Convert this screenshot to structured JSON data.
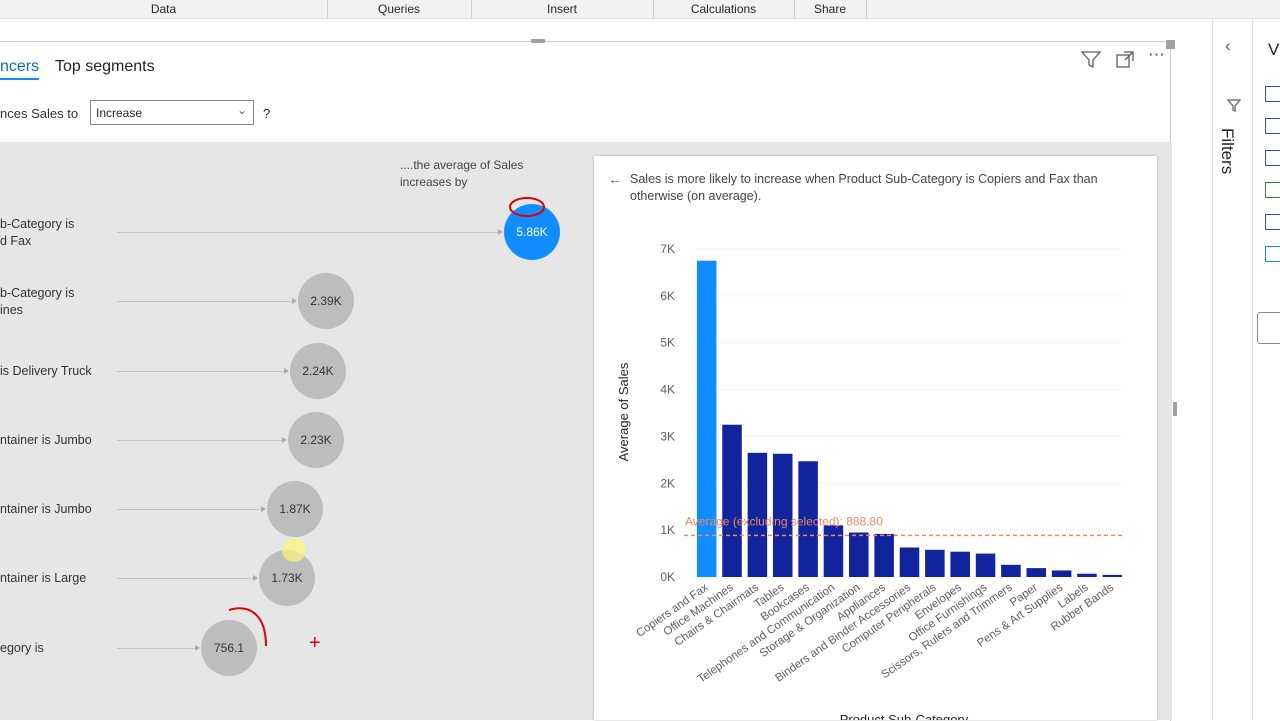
{
  "ribbon": {
    "groups": [
      "Data",
      "Queries",
      "Insert",
      "Calculations",
      "Share"
    ]
  },
  "tabs": {
    "influencers": "ncers",
    "top_segments": "Top segments"
  },
  "question": {
    "lead": "nces Sales to",
    "dropdown_value": "Increase",
    "qmark": "?"
  },
  "avg_caption": "....the average of Sales increases by",
  "influencers": [
    {
      "label": "b-Category is\nd Fax",
      "value": "5.86K",
      "selected": true
    },
    {
      "label": "b-Category is\nines",
      "value": "2.39K",
      "selected": false
    },
    {
      "label": "is Delivery Truck",
      "value": "2.24K",
      "selected": false
    },
    {
      "label": "ntainer is Jumbo",
      "value": "2.23K",
      "selected": false
    },
    {
      "label": "ntainer is Jumbo",
      "value": "1.87K",
      "selected": false
    },
    {
      "label": "ntainer is Large",
      "value": "1.73K",
      "selected": false
    },
    {
      "label": "egory is",
      "value": "756.1",
      "selected": false
    }
  ],
  "detail": {
    "back_icon": "arrow-left-icon",
    "text": "Sales is more likely to increase when Product Sub-Category is Copiers and Fax than otherwise (on average)."
  },
  "chart_data": {
    "type": "bar",
    "title": "",
    "xlabel": "Product Sub-Category",
    "ylabel": "Average of Sales",
    "ylim": [
      0,
      7000
    ],
    "yticks": [
      "0K",
      "1K",
      "2K",
      "3K",
      "4K",
      "5K",
      "6K",
      "7K"
    ],
    "categories": [
      "Copiers and Fax",
      "Office Machines",
      "Chairs & Chairmats",
      "Tables",
      "Bookcases",
      "Telephones and Communication",
      "Storage & Organization",
      "Appliances",
      "Binders and Binder Accessories",
      "Computer Peripherals",
      "Envelopes",
      "Office Furnishings",
      "Scissors, Rulers and Trimmers",
      "Paper",
      "Pens & Art Supplies",
      "Labels",
      "Rubber Bands"
    ],
    "values": [
      6750,
      3250,
      2650,
      2630,
      2470,
      1100,
      950,
      920,
      630,
      580,
      540,
      500,
      260,
      190,
      140,
      70,
      45
    ],
    "selected_index": 0,
    "reference_line": {
      "label": "Average (excluding selected): 888.80",
      "value": 888.8
    },
    "colors": {
      "selected": "#118dff",
      "bars": "#12239e",
      "reference": "#f2885f",
      "grid": "#dcdcdc"
    },
    "grid": true
  },
  "right_panel": {
    "filters_label": "Filters",
    "viz_label": "V"
  },
  "icons": {
    "filter": "filter-icon",
    "focus": "focus-mode-icon",
    "more": "more-options-icon",
    "collapse": "chevron-left-icon"
  }
}
